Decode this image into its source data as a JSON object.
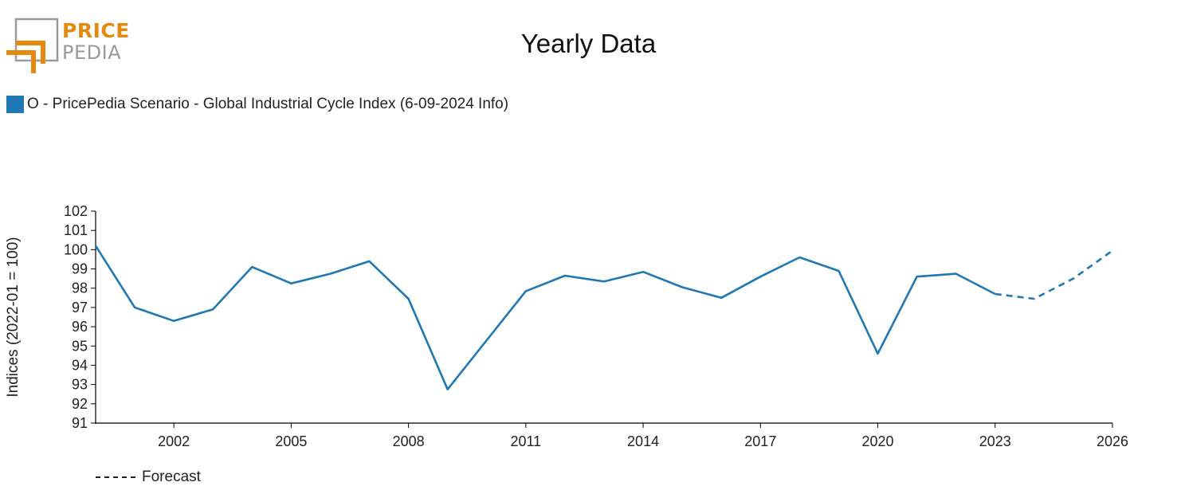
{
  "logo": {
    "text_top": "PRICE",
    "text_bottom": "PEDIA"
  },
  "title": "Yearly Data",
  "legend": {
    "label": "O - PricePedia Scenario - Global Industrial Cycle Index (6-09-2024 Info)",
    "color": "#1f78b4"
  },
  "forecast_label": "Forecast",
  "chart_data": {
    "type": "line",
    "title": "Yearly Data",
    "xlabel": "",
    "ylabel": "Indices (2022-01 = 100)",
    "xlim": [
      2000,
      2026
    ],
    "ylim": [
      91,
      102
    ],
    "x_ticks": [
      2002,
      2005,
      2008,
      2011,
      2014,
      2017,
      2020,
      2023,
      2026
    ],
    "y_ticks": [
      91,
      92,
      93,
      94,
      95,
      96,
      97,
      98,
      99,
      100,
      101,
      102
    ],
    "grid": false,
    "legend_position": "top-left",
    "series": [
      {
        "name": "O - PricePedia Scenario - Global Industrial Cycle Index (6-09-2024 Info)",
        "color": "#1f78b4",
        "style": "solid",
        "x": [
          2000,
          2001,
          2002,
          2003,
          2004,
          2005,
          2006,
          2007,
          2008,
          2009,
          2010,
          2011,
          2012,
          2013,
          2014,
          2015,
          2016,
          2017,
          2018,
          2019,
          2020,
          2021,
          2022,
          2023
        ],
        "values": [
          100.2,
          97.0,
          96.3,
          96.9,
          99.1,
          98.25,
          98.75,
          99.4,
          97.45,
          92.75,
          95.3,
          97.85,
          98.65,
          98.35,
          98.85,
          98.05,
          97.5,
          98.6,
          99.6,
          98.9,
          94.6,
          98.6,
          98.75,
          97.7
        ]
      },
      {
        "name": "Forecast",
        "color": "#1f78b4",
        "style": "dashed",
        "x": [
          2023,
          2024,
          2025,
          2026
        ],
        "values": [
          97.7,
          97.45,
          98.5,
          99.95
        ]
      }
    ]
  }
}
